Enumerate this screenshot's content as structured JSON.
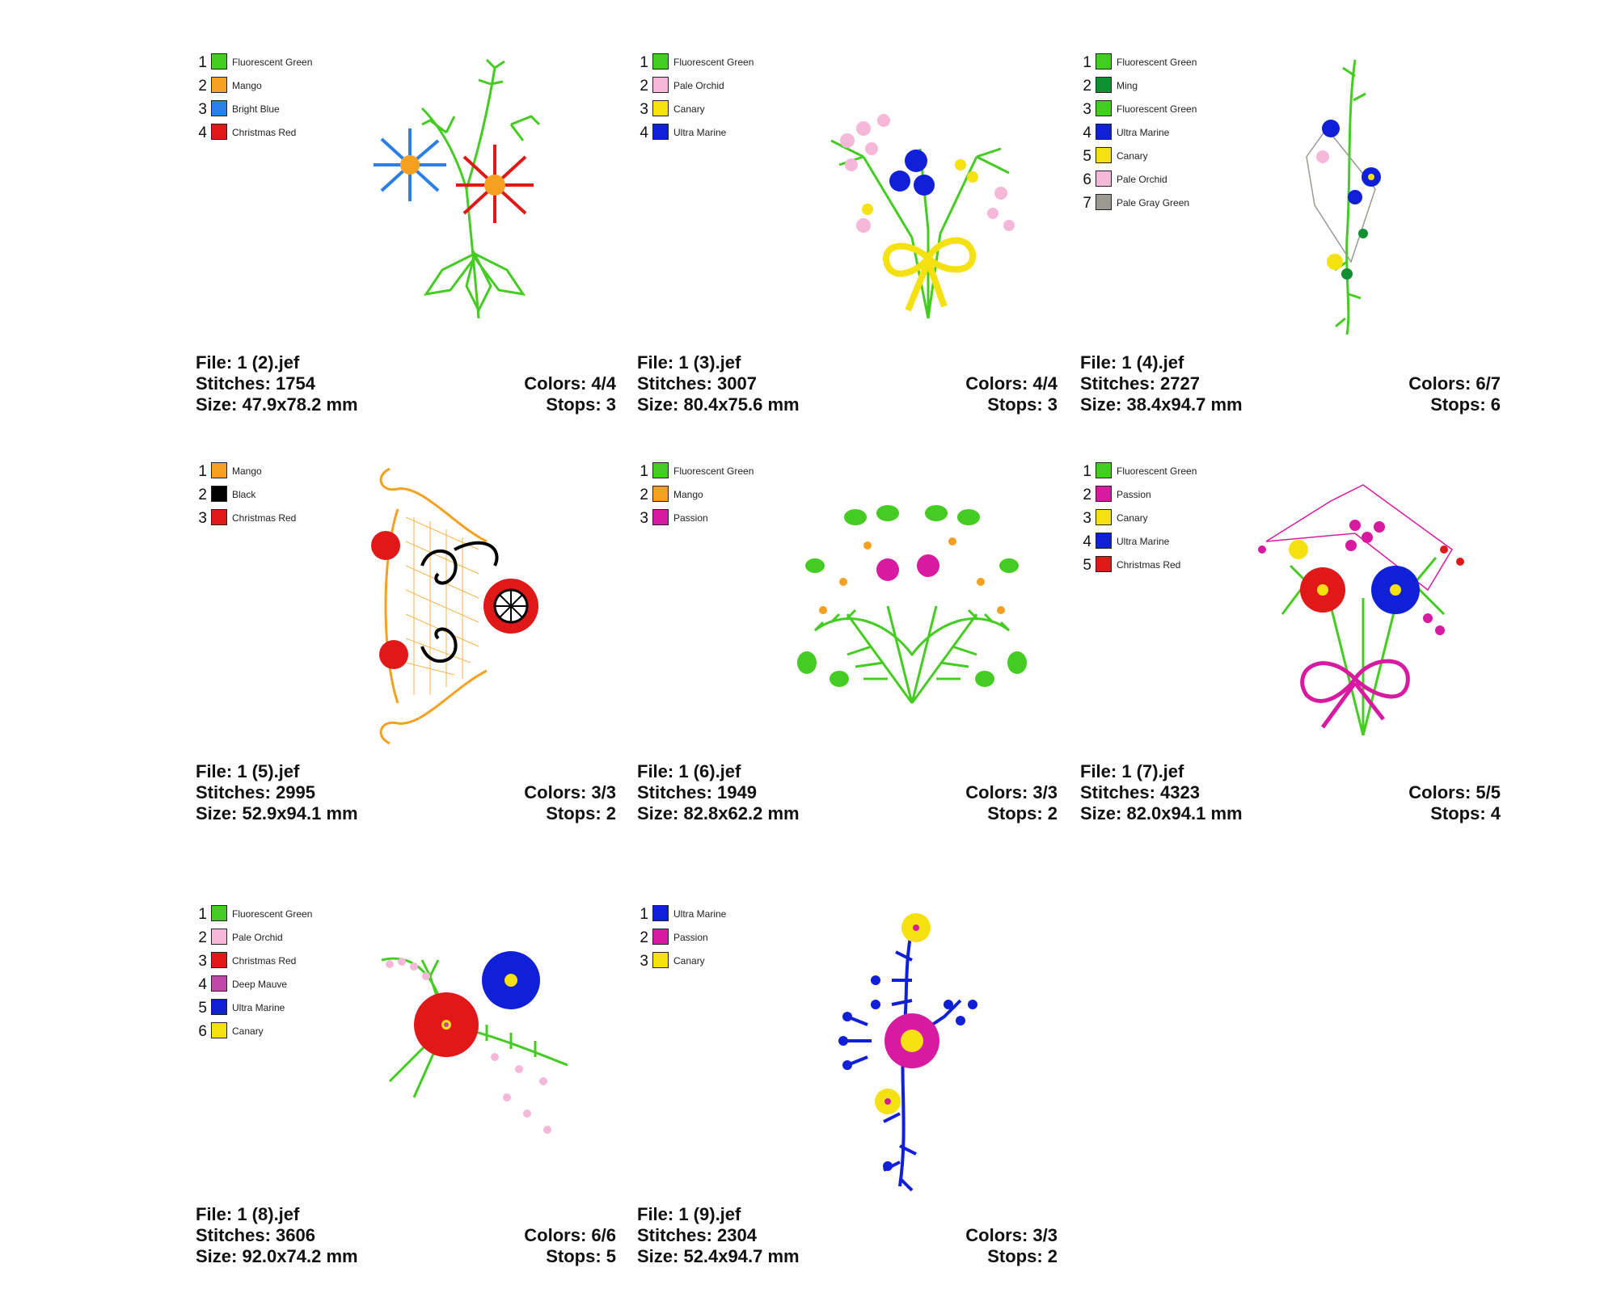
{
  "designs": [
    {
      "file": "File: 1 (2).jef",
      "stitches": "Stitches: 1754",
      "size": "Size: 47.9x78.2 mm",
      "colors_text": "Colors: 4/4",
      "stops_text": "Stops: 3",
      "palette": [
        {
          "num": "1",
          "name": "Fluorescent Green",
          "color": "#44cc22"
        },
        {
          "num": "2",
          "name": "Mango",
          "color": "#f5a020"
        },
        {
          "num": "3",
          "name": "Bright Blue",
          "color": "#2a80e8"
        },
        {
          "num": "4",
          "name": "Christmas Red",
          "color": "#e01818"
        }
      ],
      "motif": "daisy-pair"
    },
    {
      "file": "File: 1 (3).jef",
      "stitches": "Stitches: 3007",
      "size": "Size: 80.4x75.6 mm",
      "colors_text": "Colors: 4/4",
      "stops_text": "Stops: 3",
      "palette": [
        {
          "num": "1",
          "name": "Fluorescent Green",
          "color": "#44cc22"
        },
        {
          "num": "2",
          "name": "Pale Orchid",
          "color": "#f5b8d8"
        },
        {
          "num": "3",
          "name": "Canary",
          "color": "#f5e010"
        },
        {
          "num": "4",
          "name": "Ultra Marine",
          "color": "#1020d8"
        }
      ],
      "motif": "bouquet-bow"
    },
    {
      "file": "File: 1 (4).jef",
      "stitches": "Stitches: 2727",
      "size": "Size: 38.4x94.7 mm",
      "colors_text": "Colors: 6/7",
      "stops_text": "Stops: 6",
      "palette": [
        {
          "num": "1",
          "name": "Fluorescent Green",
          "color": "#44cc22"
        },
        {
          "num": "2",
          "name": "Ming",
          "color": "#109030"
        },
        {
          "num": "3",
          "name": "Fluorescent Green",
          "color": "#44cc22"
        },
        {
          "num": "4",
          "name": "Ultra Marine",
          "color": "#1020d8"
        },
        {
          "num": "5",
          "name": "Canary",
          "color": "#f5e010"
        },
        {
          "num": "6",
          "name": "Pale Orchid",
          "color": "#f5b8d8"
        },
        {
          "num": "7",
          "name": "Pale Gray Green",
          "color": "#9a9a90"
        }
      ],
      "motif": "vertical-spray"
    },
    {
      "file": "File: 1 (5).jef",
      "stitches": "Stitches: 2995",
      "size": "Size: 52.9x94.1 mm",
      "colors_text": "Colors: 3/3",
      "stops_text": "Stops: 2",
      "palette": [
        {
          "num": "1",
          "name": "Mango",
          "color": "#f5a020"
        },
        {
          "num": "2",
          "name": "Black",
          "color": "#000000"
        },
        {
          "num": "3",
          "name": "Christmas Red",
          "color": "#e01818"
        }
      ],
      "motif": "lace-corner"
    },
    {
      "file": "File: 1 (6).jef",
      "stitches": "Stitches: 1949",
      "size": "Size: 82.8x62.2 mm",
      "colors_text": "Colors: 3/3",
      "stops_text": "Stops: 2",
      "palette": [
        {
          "num": "1",
          "name": "Fluorescent Green",
          "color": "#44cc22"
        },
        {
          "num": "2",
          "name": "Mango",
          "color": "#f5a020"
        },
        {
          "num": "3",
          "name": "Passion",
          "color": "#d81aa0"
        }
      ],
      "motif": "fern-spray"
    },
    {
      "file": "File: 1 (7).jef",
      "stitches": "Stitches: 4323",
      "size": "Size: 82.0x94.1 mm",
      "colors_text": "Colors: 5/5",
      "stops_text": "Stops: 4",
      "palette": [
        {
          "num": "1",
          "name": "Fluorescent Green",
          "color": "#44cc22"
        },
        {
          "num": "2",
          "name": "Passion",
          "color": "#d81aa0"
        },
        {
          "num": "3",
          "name": "Canary",
          "color": "#f5e010"
        },
        {
          "num": "4",
          "name": "Ultra Marine",
          "color": "#1020d8"
        },
        {
          "num": "5",
          "name": "Christmas Red",
          "color": "#e01818"
        }
      ],
      "motif": "ribbon-bouquet"
    },
    {
      "file": "File: 1 (8).jef",
      "stitches": "Stitches: 3606",
      "size": "Size: 92.0x74.2 mm",
      "colors_text": "Colors: 6/6",
      "stops_text": "Stops: 5",
      "palette": [
        {
          "num": "1",
          "name": "Fluorescent Green",
          "color": "#44cc22"
        },
        {
          "num": "2",
          "name": "Pale Orchid",
          "color": "#f5b8d8"
        },
        {
          "num": "3",
          "name": "Christmas Red",
          "color": "#e01818"
        },
        {
          "num": "4",
          "name": "Deep Mauve",
          "color": "#c048a8"
        },
        {
          "num": "5",
          "name": "Ultra Marine",
          "color": "#1020d8"
        },
        {
          "num": "6",
          "name": "Canary",
          "color": "#f5e010"
        }
      ],
      "motif": "bleeding-heart"
    },
    {
      "file": "File: 1 (9).jef",
      "stitches": "Stitches: 2304",
      "size": "Size: 52.4x94.7 mm",
      "colors_text": "Colors: 3/3",
      "stops_text": "Stops: 2",
      "palette": [
        {
          "num": "1",
          "name": "Ultra Marine",
          "color": "#1020d8"
        },
        {
          "num": "2",
          "name": "Passion",
          "color": "#d81aa0"
        },
        {
          "num": "3",
          "name": "Canary",
          "color": "#f5e010"
        }
      ],
      "motif": "vertical-cross"
    }
  ]
}
